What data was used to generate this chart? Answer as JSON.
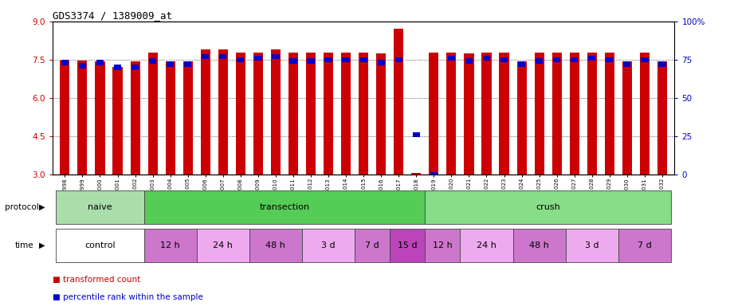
{
  "title": "GDS3374 / 1389009_at",
  "samples": [
    "GSM250998",
    "GSM250999",
    "GSM251000",
    "GSM251001",
    "GSM251002",
    "GSM251003",
    "GSM251004",
    "GSM251005",
    "GSM251006",
    "GSM251007",
    "GSM251008",
    "GSM251009",
    "GSM251010",
    "GSM251011",
    "GSM251012",
    "GSM251013",
    "GSM251014",
    "GSM251015",
    "GSM251016",
    "GSM251017",
    "GSM251018",
    "GSM251019",
    "GSM251020",
    "GSM251021",
    "GSM251022",
    "GSM251023",
    "GSM251024",
    "GSM251025",
    "GSM251026",
    "GSM251027",
    "GSM251028",
    "GSM251029",
    "GSM251030",
    "GSM251031",
    "GSM251032"
  ],
  "red_values": [
    7.45,
    7.45,
    7.42,
    7.2,
    7.42,
    7.78,
    7.42,
    7.42,
    7.9,
    7.9,
    7.78,
    7.78,
    7.9,
    7.78,
    7.78,
    7.78,
    7.78,
    7.78,
    7.75,
    8.7,
    3.05,
    7.78,
    7.78,
    7.75,
    7.78,
    7.78,
    7.42,
    7.78,
    7.78,
    7.78,
    7.78,
    7.78,
    7.42,
    7.78,
    7.42
  ],
  "blue_values": [
    73,
    71,
    73,
    70,
    70,
    74,
    72,
    72,
    77,
    77,
    75,
    76,
    77,
    74,
    74,
    75,
    75,
    75,
    73,
    75,
    26,
    0,
    76,
    74,
    76,
    75,
    72,
    74,
    75,
    75,
    76,
    75,
    72,
    75,
    72
  ],
  "ylim_left": [
    3,
    9
  ],
  "ylim_right": [
    0,
    100
  ],
  "yticks_left": [
    3,
    4.5,
    6,
    7.5,
    9
  ],
  "yticks_right": [
    0,
    25,
    50,
    75,
    100
  ],
  "red_color": "#CC0000",
  "blue_color": "#0000CC",
  "bar_width": 0.55,
  "protocol_bands": [
    {
      "label": "naive",
      "start": 0,
      "end": 5,
      "color": "#AADDAA"
    },
    {
      "label": "transection",
      "start": 5,
      "end": 21,
      "color": "#55CC55"
    },
    {
      "label": "crush",
      "start": 21,
      "end": 35,
      "color": "#88DD88"
    }
  ],
  "time_bands": [
    {
      "label": "control",
      "start": 0,
      "end": 5,
      "color": "#FFFFFF"
    },
    {
      "label": "12 h",
      "start": 5,
      "end": 8,
      "color": "#CC77CC"
    },
    {
      "label": "24 h",
      "start": 8,
      "end": 11,
      "color": "#EEAAEE"
    },
    {
      "label": "48 h",
      "start": 11,
      "end": 14,
      "color": "#CC77CC"
    },
    {
      "label": "3 d",
      "start": 14,
      "end": 17,
      "color": "#EEAAEE"
    },
    {
      "label": "7 d",
      "start": 17,
      "end": 19,
      "color": "#CC77CC"
    },
    {
      "label": "15 d",
      "start": 19,
      "end": 21,
      "color": "#BB44BB"
    },
    {
      "label": "12 h",
      "start": 21,
      "end": 23,
      "color": "#CC77CC"
    },
    {
      "label": "24 h",
      "start": 23,
      "end": 26,
      "color": "#EEAAEE"
    },
    {
      "label": "48 h",
      "start": 26,
      "end": 29,
      "color": "#CC77CC"
    },
    {
      "label": "3 d",
      "start": 29,
      "end": 32,
      "color": "#EEAAEE"
    },
    {
      "label": "7 d",
      "start": 32,
      "end": 35,
      "color": "#CC77CC"
    }
  ],
  "bg_color": "#FFFFFF",
  "chart_bg": "#FFFFFF",
  "xtick_bg": "#DDDDDD",
  "band_bg": "#DDDDDD"
}
